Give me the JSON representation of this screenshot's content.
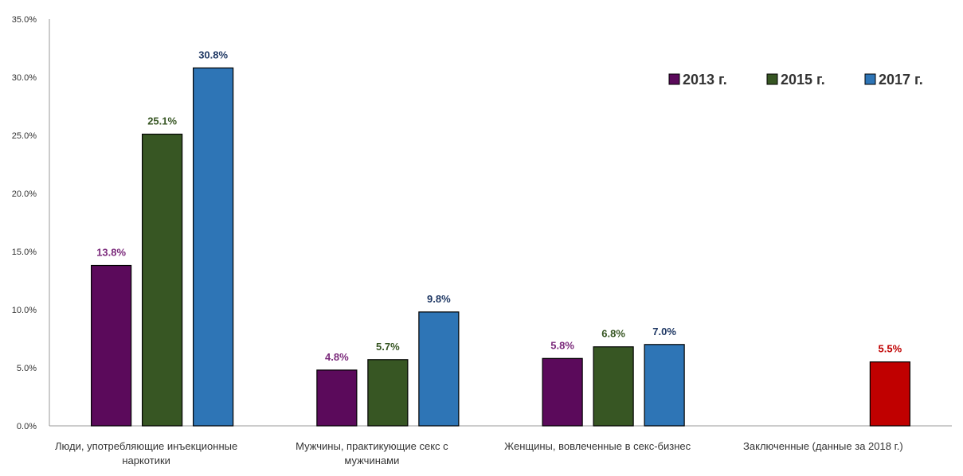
{
  "chart_data": {
    "type": "bar",
    "title": "",
    "xlabel": "",
    "ylabel": "",
    "ylim": [
      0,
      35
    ],
    "y_ticks": [
      "0.0%",
      "5.0%",
      "10.0%",
      "15.0%",
      "20.0%",
      "25.0%",
      "30.0%",
      "35.0%"
    ],
    "grid": false,
    "legend_position": "top-right",
    "categories": [
      [
        "Люди, употребляющие инъекционные",
        "наркотики"
      ],
      [
        "Мужчины, практикующие секс с",
        "мужчинами"
      ],
      [
        "Женщины, вовлеченные в секс-бизнес"
      ],
      [
        "Заключенные (данные за 2018 г.)"
      ]
    ],
    "series": [
      {
        "name": "2013 г.",
        "color": "#5B0A5B",
        "label_color": "#7B2A7B",
        "values": [
          13.8,
          4.8,
          5.8,
          null
        ],
        "labels": [
          "13.8%",
          "4.8%",
          "5.8%",
          null
        ]
      },
      {
        "name": "2015 г.",
        "color": "#375623",
        "label_color": "#375623",
        "values": [
          25.1,
          5.7,
          6.8,
          null
        ],
        "labels": [
          "25.1%",
          "5.7%",
          "6.8%",
          null
        ]
      },
      {
        "name": "2017 г.",
        "color": "#2E75B6",
        "label_color": "#1F3864",
        "values": [
          30.8,
          9.8,
          7.0,
          null
        ],
        "labels": [
          "30.8%",
          "9.8%",
          "7.0%",
          null
        ]
      }
    ],
    "extra_bars": [
      {
        "category_index": 3,
        "value": 5.5,
        "label": "5.5%",
        "color": "#C00000",
        "label_color": "#C00000"
      }
    ]
  }
}
